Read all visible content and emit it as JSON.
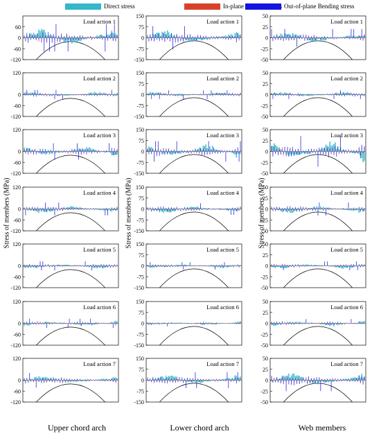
{
  "legend": [
    {
      "label": "Direct stress",
      "color": "#33b7c9"
    },
    {
      "label": "In-plane Bending stress",
      "color": "#d9402a"
    },
    {
      "label": "Out-of-plane Bending stress",
      "color": "#1414e0"
    }
  ],
  "column_labels": [
    "Upper chord arch",
    "Lower chord arch",
    "Web members"
  ],
  "ylabel": "Stress of members (MPa)",
  "chart_data": {
    "type": "area",
    "panel_title_prefix": "Load action",
    "load_actions": [
      "Load action 1",
      "Load action 2",
      "Load action 3",
      "Load action 4",
      "Load action 5",
      "Load action 6",
      "Load action 7"
    ],
    "columns": [
      {
        "name": "Upper chord arch",
        "ylim": [
          -120,
          120
        ],
        "yticks": [
          60,
          0,
          -60,
          -120
        ],
        "top_tick_first_row": 60,
        "top_tick_other_rows": 120
      },
      {
        "name": "Lower chord arch",
        "ylim": [
          -150,
          150
        ],
        "yticks": [
          150,
          75,
          0,
          -75,
          -150
        ]
      },
      {
        "name": "Web members",
        "ylim": [
          -50,
          50
        ],
        "yticks": [
          50,
          25,
          0,
          -25,
          -50
        ]
      }
    ],
    "series": [
      "Direct stress",
      "In-plane Bending stress",
      "Out-of-plane Bending stress"
    ],
    "peak_stress_estimate": {
      "Upper chord arch": [
        75,
        25,
        45,
        35,
        25,
        25,
        40
      ],
      "Lower chord arch": [
        80,
        30,
        70,
        40,
        25,
        20,
        55
      ],
      "Web members": [
        20,
        10,
        35,
        15,
        10,
        10,
        25
      ]
    }
  }
}
